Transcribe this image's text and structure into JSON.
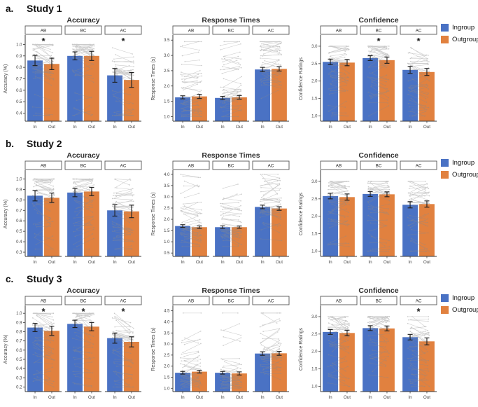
{
  "figure": {
    "legend": {
      "ingroup_label": "Ingroup",
      "outgroup_label": "Outgroup"
    },
    "colors": {
      "ingroup": "#4A72C4",
      "outgroup": "#E1813F",
      "axis": "#3a3a3a",
      "error_bar": "#1c1c1c",
      "individual_lines": "#8a8a8a"
    },
    "series_labels": [
      "Ingroup",
      "Outgroup"
    ]
  },
  "chart_data": [
    {
      "row_label": "a.",
      "title": "Study 1",
      "panels": [
        {
          "type": "bar",
          "title": "Accuracy",
          "ylabel": "Accuracy (%)",
          "yticks": [
            0.4,
            0.5,
            0.6,
            0.7,
            0.8,
            0.9,
            1.0
          ],
          "ylim": [
            0.33,
            1.07
          ],
          "categories": [
            "In",
            "Out"
          ],
          "facets": [
            {
              "label": "AB",
              "ingroup": 0.86,
              "outgroup": 0.83,
              "ingroup_err": 0.045,
              "outgroup_err": 0.05,
              "significant": true
            },
            {
              "label": "BC",
              "ingroup": 0.9,
              "outgroup": 0.9,
              "ingroup_err": 0.035,
              "outgroup_err": 0.04,
              "significant": false
            },
            {
              "label": "AC",
              "ingroup": 0.73,
              "outgroup": 0.69,
              "ingroup_err": 0.06,
              "outgroup_err": 0.065,
              "significant": true
            }
          ],
          "points_range": [
            0.38,
            1.0
          ],
          "points_tail": "down"
        },
        {
          "type": "bar",
          "title": "Response Times",
          "ylabel": "Response Times (s)",
          "yticks": [
            1.0,
            1.5,
            2.0,
            2.5,
            3.0,
            3.5
          ],
          "ylim": [
            0.85,
            3.62
          ],
          "categories": [
            "In",
            "Out"
          ],
          "facets": [
            {
              "label": "AB",
              "ingroup": 1.63,
              "outgroup": 1.66,
              "ingroup_err": 0.05,
              "outgroup_err": 0.07,
              "significant": false
            },
            {
              "label": "BC",
              "ingroup": 1.61,
              "outgroup": 1.63,
              "ingroup_err": 0.05,
              "outgroup_err": 0.06,
              "significant": false
            },
            {
              "label": "AC",
              "ingroup": 2.54,
              "outgroup": 2.56,
              "ingroup_err": 0.07,
              "outgroup_err": 0.07,
              "significant": false
            }
          ],
          "points_range": [
            1.0,
            3.45
          ],
          "points_tail": "up"
        },
        {
          "type": "bar",
          "title": "Confidence",
          "ylabel": "Confidence Ratings",
          "yticks": [
            1.0,
            1.5,
            2.0,
            2.5,
            3.0
          ],
          "ylim": [
            0.85,
            3.28
          ],
          "categories": [
            "In",
            "Out"
          ],
          "facets": [
            {
              "label": "AB",
              "ingroup": 2.55,
              "outgroup": 2.53,
              "ingroup_err": 0.08,
              "outgroup_err": 0.09,
              "significant": false
            },
            {
              "label": "BC",
              "ingroup": 2.66,
              "outgroup": 2.6,
              "ingroup_err": 0.07,
              "outgroup_err": 0.09,
              "significant": true
            },
            {
              "label": "AC",
              "ingroup": 2.32,
              "outgroup": 2.26,
              "ingroup_err": 0.1,
              "outgroup_err": 0.1,
              "significant": true
            }
          ],
          "points_range": [
            1.0,
            3.0
          ],
          "points_tail": "down"
        }
      ]
    },
    {
      "row_label": "b.",
      "title": "Study 2",
      "panels": [
        {
          "type": "bar",
          "title": "Accuracy",
          "ylabel": "Accuracy (%)",
          "yticks": [
            0.3,
            0.4,
            0.5,
            0.6,
            0.7,
            0.8,
            0.9,
            1.0
          ],
          "ylim": [
            0.26,
            1.07
          ],
          "categories": [
            "In",
            "Out"
          ],
          "facets": [
            {
              "label": "AB",
              "ingroup": 0.84,
              "outgroup": 0.82,
              "ingroup_err": 0.05,
              "outgroup_err": 0.045,
              "significant": false
            },
            {
              "label": "BC",
              "ingroup": 0.87,
              "outgroup": 0.88,
              "ingroup_err": 0.04,
              "outgroup_err": 0.04,
              "significant": false
            },
            {
              "label": "AC",
              "ingroup": 0.7,
              "outgroup": 0.69,
              "ingroup_err": 0.055,
              "outgroup_err": 0.06,
              "significant": false
            }
          ],
          "points_range": [
            0.33,
            1.0
          ],
          "points_tail": "down"
        },
        {
          "type": "bar",
          "title": "Response Times",
          "ylabel": "Response Times (s)",
          "yticks": [
            0.5,
            1.0,
            1.5,
            2.0,
            2.5,
            3.0,
            3.5,
            4.0
          ],
          "ylim": [
            0.35,
            4.12
          ],
          "categories": [
            "In",
            "Out"
          ],
          "facets": [
            {
              "label": "AB",
              "ingroup": 1.7,
              "outgroup": 1.65,
              "ingroup_err": 0.06,
              "outgroup_err": 0.055,
              "significant": false
            },
            {
              "label": "BC",
              "ingroup": 1.65,
              "outgroup": 1.65,
              "ingroup_err": 0.055,
              "outgroup_err": 0.05,
              "significant": false
            },
            {
              "label": "AC",
              "ingroup": 2.55,
              "outgroup": 2.48,
              "ingroup_err": 0.08,
              "outgroup_err": 0.08,
              "significant": false
            }
          ],
          "points_range": [
            0.8,
            4.0
          ],
          "points_tail": "up"
        },
        {
          "type": "bar",
          "title": "Confidence",
          "ylabel": "Confidence Ratings",
          "yticks": [
            1.0,
            1.5,
            2.0,
            2.5,
            3.0
          ],
          "ylim": [
            0.85,
            3.28
          ],
          "categories": [
            "In",
            "Out"
          ],
          "facets": [
            {
              "label": "AB",
              "ingroup": 2.58,
              "outgroup": 2.55,
              "ingroup_err": 0.08,
              "outgroup_err": 0.09,
              "significant": false
            },
            {
              "label": "BC",
              "ingroup": 2.64,
              "outgroup": 2.63,
              "ingroup_err": 0.07,
              "outgroup_err": 0.07,
              "significant": false
            },
            {
              "label": "AC",
              "ingroup": 2.33,
              "outgroup": 2.35,
              "ingroup_err": 0.09,
              "outgroup_err": 0.09,
              "significant": false
            }
          ],
          "points_range": [
            1.0,
            3.0
          ],
          "points_tail": "down"
        }
      ]
    },
    {
      "row_label": "c.",
      "title": "Study 3",
      "panels": [
        {
          "type": "bar",
          "title": "Accuracy",
          "ylabel": "Accuracy (%)",
          "yticks": [
            0.2,
            0.3,
            0.4,
            0.5,
            0.6,
            0.7,
            0.8,
            0.9,
            1.0
          ],
          "ylim": [
            0.15,
            1.07
          ],
          "categories": [
            "In",
            "Out"
          ],
          "facets": [
            {
              "label": "AB",
              "ingroup": 0.845,
              "outgroup": 0.81,
              "ingroup_err": 0.045,
              "outgroup_err": 0.05,
              "significant": true
            },
            {
              "label": "BC",
              "ingroup": 0.885,
              "outgroup": 0.855,
              "ingroup_err": 0.04,
              "outgroup_err": 0.045,
              "significant": true
            },
            {
              "label": "AC",
              "ingroup": 0.73,
              "outgroup": 0.69,
              "ingroup_err": 0.055,
              "outgroup_err": 0.055,
              "significant": true
            }
          ],
          "points_range": [
            0.2,
            1.0
          ],
          "points_tail": "down"
        },
        {
          "type": "bar",
          "title": "Response Times",
          "ylabel": "Response Times (s)",
          "yticks": [
            1.0,
            1.5,
            2.0,
            2.5,
            3.0,
            3.5,
            4.0,
            4.5
          ],
          "ylim": [
            0.85,
            4.68
          ],
          "categories": [
            "In",
            "Out"
          ],
          "facets": [
            {
              "label": "AB",
              "ingroup": 1.7,
              "outgroup": 1.75,
              "ingroup_err": 0.06,
              "outgroup_err": 0.06,
              "significant": false
            },
            {
              "label": "BC",
              "ingroup": 1.7,
              "outgroup": 1.67,
              "ingroup_err": 0.06,
              "outgroup_err": 0.07,
              "significant": false
            },
            {
              "label": "AC",
              "ingroup": 2.57,
              "outgroup": 2.58,
              "ingroup_err": 0.08,
              "outgroup_err": 0.09,
              "significant": false
            }
          ],
          "points_range": [
            1.0,
            4.4
          ],
          "points_tail": "up"
        },
        {
          "type": "bar",
          "title": "Confidence",
          "ylabel": "Confidence Ratings",
          "yticks": [
            1.0,
            1.5,
            2.0,
            2.5,
            3.0
          ],
          "ylim": [
            0.85,
            3.28
          ],
          "categories": [
            "In",
            "Out"
          ],
          "facets": [
            {
              "label": "AB",
              "ingroup": 2.56,
              "outgroup": 2.53,
              "ingroup_err": 0.07,
              "outgroup_err": 0.08,
              "significant": false
            },
            {
              "label": "BC",
              "ingroup": 2.67,
              "outgroup": 2.66,
              "ingroup_err": 0.07,
              "outgroup_err": 0.07,
              "significant": false
            },
            {
              "label": "AC",
              "ingroup": 2.41,
              "outgroup": 2.29,
              "ingroup_err": 0.08,
              "outgroup_err": 0.1,
              "significant": true
            }
          ],
          "points_range": [
            1.0,
            3.0
          ],
          "points_tail": "down"
        }
      ]
    }
  ]
}
